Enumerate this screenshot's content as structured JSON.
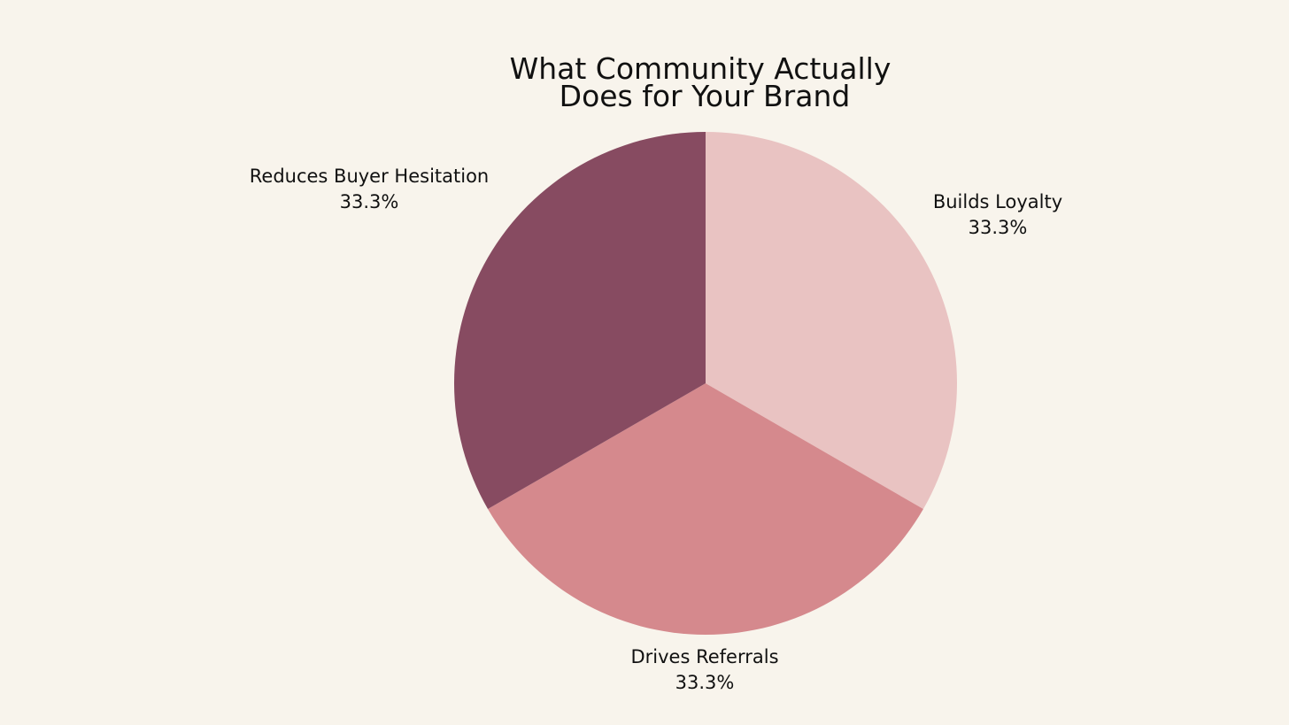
{
  "chart_data": {
    "type": "pie",
    "title_lines": [
      "What Community Actually",
      "Does for Your Brand"
    ],
    "start_angle_deg": 90,
    "direction": "clockwise",
    "slices": [
      {
        "label": "Builds Loyalty",
        "value": 33.3,
        "pct_label": "33.3%",
        "color": "#e9c3c2"
      },
      {
        "label": "Drives Referrals",
        "value": 33.3,
        "pct_label": "33.3%",
        "color": "#d5898d"
      },
      {
        "label": "Reduces Buyer Hesitation",
        "value": 33.3,
        "pct_label": "33.3%",
        "color": "#874b61"
      }
    ]
  },
  "colors": {
    "background": "#f8f4ec",
    "text": "#111111"
  }
}
